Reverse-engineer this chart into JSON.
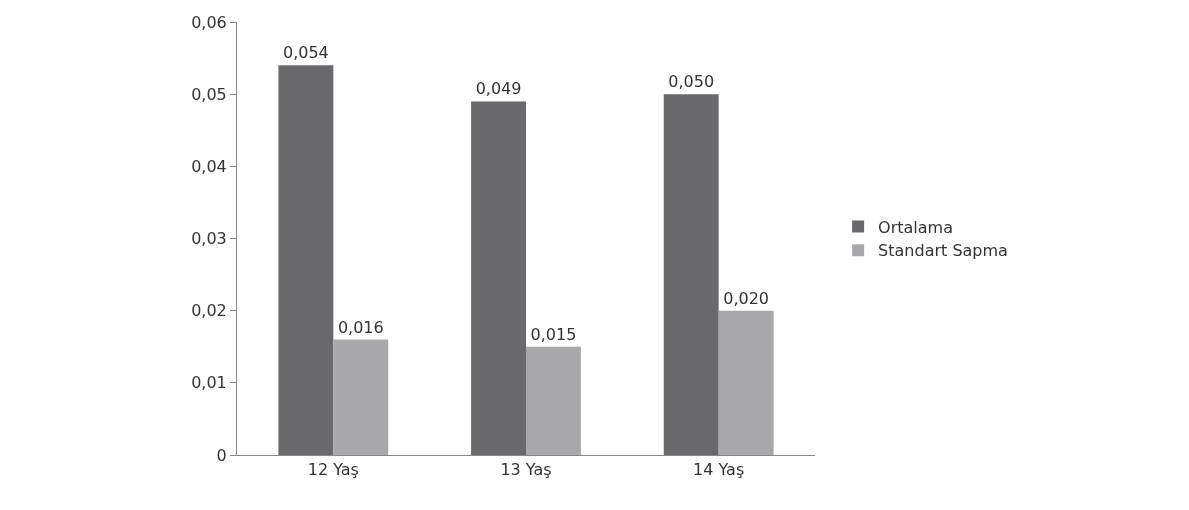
{
  "chart_data": {
    "type": "bar",
    "categories": [
      "12 Yaş",
      "13 Yaş",
      "14 Yaş"
    ],
    "series": [
      {
        "name": "Ortalama",
        "color": "#69696b",
        "values": [
          0.054,
          0.049,
          0.05
        ],
        "value_labels": [
          "0,054",
          "0,049",
          "0,050"
        ]
      },
      {
        "name": "Standart Sapma",
        "color": "#a8a8aa",
        "values": [
          0.016,
          0.015,
          0.02
        ],
        "value_labels": [
          "0,016",
          "0,015",
          "0,020"
        ]
      }
    ],
    "ylim": [
      0,
      0.06
    ],
    "yticks": [
      0,
      {
        "value": 0.01,
        "label": "0,01"
      },
      {
        "value": 0.02,
        "label": "0,02"
      },
      {
        "value": 0.03,
        "label": "0,03"
      },
      {
        "value": 0.04,
        "label": "0,04"
      },
      {
        "value": 0.05,
        "label": "0,05"
      },
      {
        "value": 0.06,
        "label": "0,06"
      }
    ],
    "legend": "right"
  }
}
